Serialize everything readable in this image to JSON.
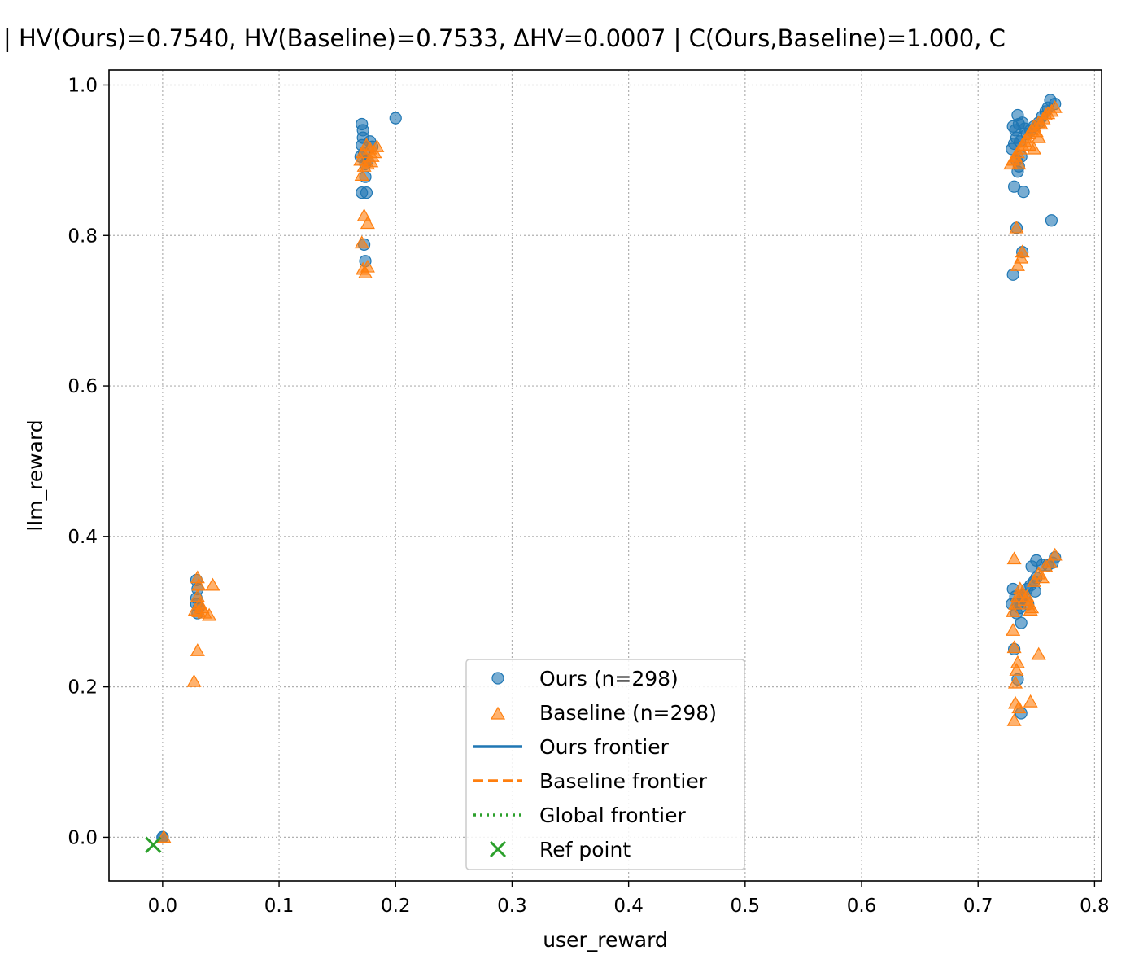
{
  "chart_data": {
    "type": "scatter",
    "title": "| HV(Ours)=0.7540, HV(Baseline)=0.7533, ΔHV=0.0007 | C(Ours,Baseline)=1.000, C",
    "xlabel": "user_reward",
    "ylabel": "llm_reward",
    "xlim": [
      -0.046,
      0.806
    ],
    "ylim": [
      -0.058,
      1.02
    ],
    "xticks": [
      "0.0",
      "0.1",
      "0.2",
      "0.3",
      "0.4",
      "0.5",
      "0.6",
      "0.7",
      "0.8"
    ],
    "yticks": [
      "0.0",
      "0.2",
      "0.4",
      "0.6",
      "0.8",
      "1.0"
    ],
    "grid": true,
    "legend_position": "lower-center",
    "series": [
      {
        "name": "Ours (n=298)",
        "marker": "circle",
        "color": "#1f77b4",
        "points": [
          [
            0.0,
            0.0
          ],
          [
            0.0,
            0.0
          ],
          [
            0.029,
            0.342
          ],
          [
            0.03,
            0.33
          ],
          [
            0.029,
            0.318
          ],
          [
            0.031,
            0.305
          ],
          [
            0.03,
            0.298
          ],
          [
            0.029,
            0.31
          ],
          [
            0.171,
            0.948
          ],
          [
            0.172,
            0.94
          ],
          [
            0.172,
            0.93
          ],
          [
            0.171,
            0.92
          ],
          [
            0.173,
            0.91
          ],
          [
            0.17,
            0.905
          ],
          [
            0.174,
            0.895
          ],
          [
            0.178,
            0.925
          ],
          [
            0.18,
            0.918
          ],
          [
            0.176,
            0.9
          ],
          [
            0.171,
            0.857
          ],
          [
            0.175,
            0.857
          ],
          [
            0.174,
            0.878
          ],
          [
            0.173,
            0.788
          ],
          [
            0.174,
            0.766
          ],
          [
            0.2,
            0.956
          ],
          [
            0.73,
            0.945
          ],
          [
            0.732,
            0.94
          ],
          [
            0.735,
            0.948
          ],
          [
            0.734,
            0.96
          ],
          [
            0.738,
            0.95
          ],
          [
            0.74,
            0.942
          ],
          [
            0.733,
            0.93
          ],
          [
            0.731,
            0.922
          ],
          [
            0.729,
            0.915
          ],
          [
            0.736,
            0.925
          ],
          [
            0.742,
            0.935
          ],
          [
            0.745,
            0.94
          ],
          [
            0.748,
            0.945
          ],
          [
            0.752,
            0.95
          ],
          [
            0.755,
            0.958
          ],
          [
            0.758,
            0.965
          ],
          [
            0.76,
            0.97
          ],
          [
            0.762,
            0.98
          ],
          [
            0.766,
            0.975
          ],
          [
            0.733,
            0.9
          ],
          [
            0.735,
            0.892
          ],
          [
            0.737,
            0.905
          ],
          [
            0.734,
            0.885
          ],
          [
            0.731,
            0.865
          ],
          [
            0.739,
            0.858
          ],
          [
            0.733,
            0.81
          ],
          [
            0.738,
            0.778
          ],
          [
            0.73,
            0.748
          ],
          [
            0.763,
            0.82
          ],
          [
            0.73,
            0.33
          ],
          [
            0.732,
            0.32
          ],
          [
            0.734,
            0.31
          ],
          [
            0.736,
            0.305
          ],
          [
            0.738,
            0.318
          ],
          [
            0.74,
            0.322
          ],
          [
            0.742,
            0.33
          ],
          [
            0.745,
            0.335
          ],
          [
            0.748,
            0.34
          ],
          [
            0.75,
            0.345
          ],
          [
            0.746,
            0.36
          ],
          [
            0.75,
            0.368
          ],
          [
            0.755,
            0.362
          ],
          [
            0.76,
            0.362
          ],
          [
            0.764,
            0.365
          ],
          [
            0.766,
            0.372
          ],
          [
            0.749,
            0.327
          ],
          [
            0.743,
            0.31
          ],
          [
            0.737,
            0.285
          ],
          [
            0.731,
            0.25
          ],
          [
            0.734,
            0.21
          ],
          [
            0.737,
            0.165
          ],
          [
            0.733,
            0.298
          ],
          [
            0.729,
            0.31
          ]
        ]
      },
      {
        "name": "Baseline (n=298)",
        "marker": "triangle",
        "color": "#ff7f0e",
        "points": [
          [
            0.001,
            0.0
          ],
          [
            0.03,
            0.345
          ],
          [
            0.031,
            0.335
          ],
          [
            0.03,
            0.32
          ],
          [
            0.032,
            0.31
          ],
          [
            0.031,
            0.3
          ],
          [
            0.028,
            0.302
          ],
          [
            0.034,
            0.305
          ],
          [
            0.036,
            0.298
          ],
          [
            0.04,
            0.295
          ],
          [
            0.043,
            0.335
          ],
          [
            0.03,
            0.248
          ],
          [
            0.027,
            0.207
          ],
          [
            0.17,
            0.9
          ],
          [
            0.172,
            0.91
          ],
          [
            0.175,
            0.92
          ],
          [
            0.178,
            0.915
          ],
          [
            0.18,
            0.905
          ],
          [
            0.182,
            0.91
          ],
          [
            0.184,
            0.918
          ],
          [
            0.176,
            0.895
          ],
          [
            0.179,
            0.898
          ],
          [
            0.171,
            0.88
          ],
          [
            0.173,
            0.826
          ],
          [
            0.176,
            0.816
          ],
          [
            0.171,
            0.79
          ],
          [
            0.172,
            0.755
          ],
          [
            0.176,
            0.758
          ],
          [
            0.174,
            0.75
          ],
          [
            0.173,
            0.892
          ],
          [
            0.73,
            0.9
          ],
          [
            0.732,
            0.905
          ],
          [
            0.734,
            0.91
          ],
          [
            0.736,
            0.915
          ],
          [
            0.738,
            0.92
          ],
          [
            0.74,
            0.925
          ],
          [
            0.742,
            0.93
          ],
          [
            0.744,
            0.935
          ],
          [
            0.746,
            0.94
          ],
          [
            0.748,
            0.945
          ],
          [
            0.75,
            0.938
          ],
          [
            0.752,
            0.95
          ],
          [
            0.754,
            0.948
          ],
          [
            0.756,
            0.955
          ],
          [
            0.758,
            0.96
          ],
          [
            0.76,
            0.962
          ],
          [
            0.763,
            0.965
          ],
          [
            0.766,
            0.97
          ],
          [
            0.744,
            0.92
          ],
          [
            0.748,
            0.915
          ],
          [
            0.752,
            0.93
          ],
          [
            0.728,
            0.895
          ],
          [
            0.735,
            0.895
          ],
          [
            0.733,
            0.81
          ],
          [
            0.738,
            0.778
          ],
          [
            0.737,
            0.77
          ],
          [
            0.734,
            0.76
          ],
          [
            0.73,
            0.3
          ],
          [
            0.732,
            0.31
          ],
          [
            0.734,
            0.32
          ],
          [
            0.736,
            0.33
          ],
          [
            0.738,
            0.325
          ],
          [
            0.74,
            0.315
          ],
          [
            0.742,
            0.32
          ],
          [
            0.744,
            0.31
          ],
          [
            0.746,
            0.305
          ],
          [
            0.748,
            0.34
          ],
          [
            0.752,
            0.35
          ],
          [
            0.755,
            0.345
          ],
          [
            0.758,
            0.36
          ],
          [
            0.762,
            0.365
          ],
          [
            0.766,
            0.375
          ],
          [
            0.731,
            0.37
          ],
          [
            0.73,
            0.275
          ],
          [
            0.731,
            0.252
          ],
          [
            0.734,
            0.232
          ],
          [
            0.733,
            0.222
          ],
          [
            0.732,
            0.205
          ],
          [
            0.732,
            0.178
          ],
          [
            0.735,
            0.172
          ],
          [
            0.731,
            0.155
          ],
          [
            0.745,
            0.18
          ],
          [
            0.752,
            0.243
          ],
          [
            0.745,
            0.302
          ]
        ]
      },
      {
        "name": "Ref point",
        "marker": "x",
        "color": "#2ca02c",
        "points": [
          [
            -0.008,
            -0.01
          ]
        ]
      }
    ],
    "legend": [
      {
        "label": "Ours (n=298)",
        "symbol": "circle",
        "color": "#1f77b4"
      },
      {
        "label": "Baseline (n=298)",
        "symbol": "triangle",
        "color": "#ff7f0e"
      },
      {
        "label": "Ours frontier",
        "symbol": "solid-line",
        "color": "#1f77b4"
      },
      {
        "label": "Baseline frontier",
        "symbol": "dashed-line",
        "color": "#ff7f0e"
      },
      {
        "label": "Global frontier",
        "symbol": "dotted-line",
        "color": "#2ca02c"
      },
      {
        "label": "Ref point",
        "symbol": "x",
        "color": "#2ca02c"
      }
    ]
  }
}
